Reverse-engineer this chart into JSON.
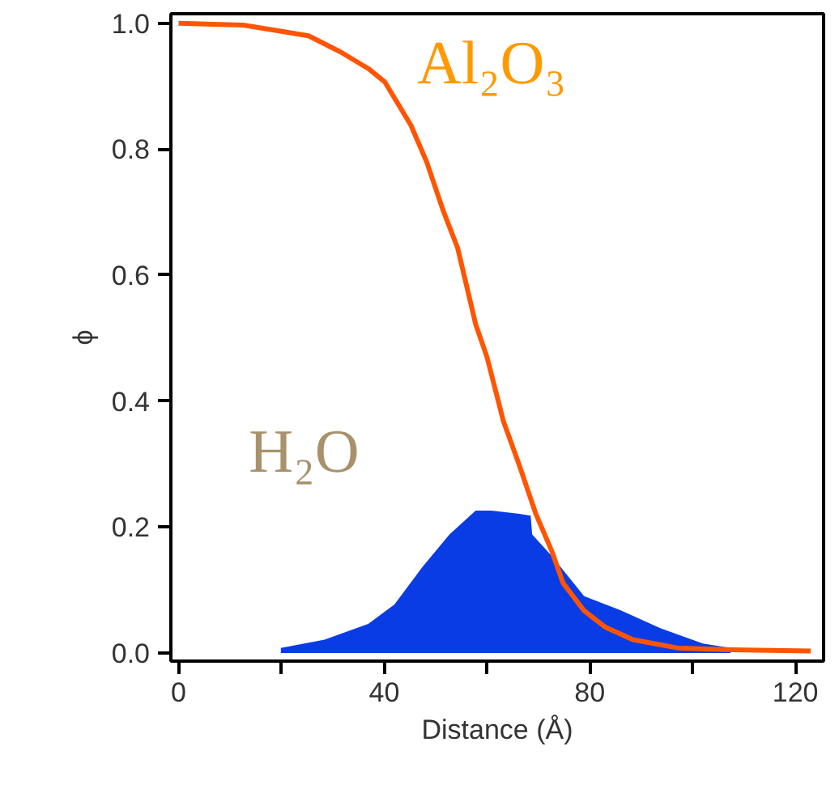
{
  "chart_data": {
    "type": "line",
    "xlabel": "Distance (Å)",
    "ylabel": "ϕ",
    "xlim": [
      -1.5,
      125.5
    ],
    "ylim": [
      -0.013,
      1.015
    ],
    "xticks": [
      0,
      {
        "value": 20,
        "label": null
      },
      40,
      {
        "value": 60,
        "label": null
      },
      80,
      {
        "value": 100,
        "label": null
      },
      120
    ],
    "yticks": [
      {
        "value": 0,
        "label": "0.0"
      },
      {
        "value": 0.2,
        "label": "0.2"
      },
      {
        "value": 0.4,
        "label": "0.4"
      },
      {
        "value": 0.6,
        "label": "0.6"
      },
      {
        "value": 0.8,
        "label": "0.8"
      },
      {
        "value": 1,
        "label": "1.0"
      }
    ],
    "grid": false,
    "series": [
      {
        "name": "H₂O",
        "type": "area",
        "color": "#0a3ce6",
        "x": [
          19.9,
          28.4,
          36.9,
          42,
          47.4,
          52.7,
          57.8,
          60.9,
          66.3,
          68.5,
          68.8,
          72.6,
          78.9,
          86.2,
          93.8,
          102,
          107.4
        ],
        "values": [
          0.008,
          0.021,
          0.046,
          0.077,
          0.136,
          0.188,
          0.226,
          0.226,
          0.221,
          0.218,
          0.188,
          0.154,
          0.09,
          0.067,
          0.039,
          0.015,
          0.008
        ]
      },
      {
        "name": "Al₂O₃",
        "color": "#ff5500",
        "x": [
          0,
          12.6,
          25.3,
          31.6,
          36.9,
          40.1,
          45.2,
          48.3,
          51.5,
          54.3,
          57.8,
          60,
          63.2,
          66.3,
          69.5,
          72.6,
          74.8,
          78.9,
          83,
          88.4,
          97,
          107.4,
          123
        ],
        "values": [
          1.0,
          0.997,
          0.98,
          0.954,
          0.928,
          0.907,
          0.838,
          0.779,
          0.702,
          0.643,
          0.522,
          0.47,
          0.368,
          0.298,
          0.221,
          0.162,
          0.111,
          0.067,
          0.041,
          0.021,
          0.008,
          0.005,
          0.003
        ]
      }
    ]
  }
}
